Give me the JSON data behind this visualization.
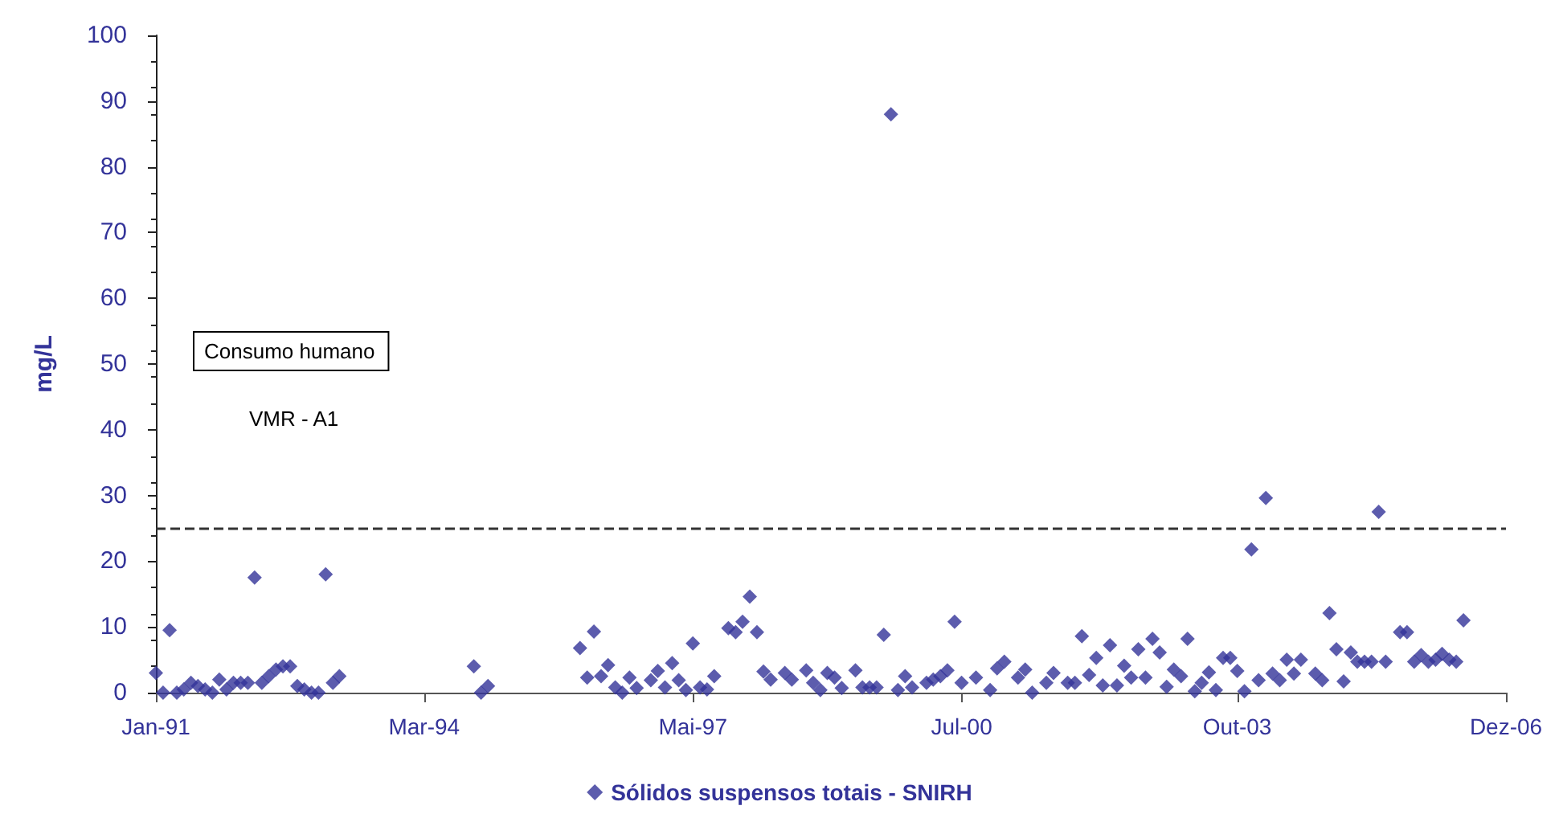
{
  "chart_data": {
    "type": "scatter",
    "ylabel": "mg/L",
    "annotations": [
      "Consumo humano",
      "VMR - A1"
    ],
    "xlim": [
      "1991-01",
      "2006-12"
    ],
    "xticks": [
      {
        "value": "1991-01",
        "label": "Jan-91"
      },
      {
        "value": "1994-03",
        "label": "Mar-94"
      },
      {
        "value": "1997-05",
        "label": "Mai-97"
      },
      {
        "value": "2000-07",
        "label": "Jul-00"
      },
      {
        "value": "2003-10",
        "label": "Out-03"
      },
      {
        "value": "2006-12",
        "label": "Dez-06"
      }
    ],
    "ylim": [
      0,
      100
    ],
    "yticks": [
      0,
      10,
      20,
      30,
      40,
      50,
      60,
      70,
      80,
      90,
      100
    ],
    "grid": false,
    "legend": "bottom",
    "marker": "diamond",
    "ref_lines": [
      {
        "axis": "y",
        "value": 25,
        "label": null,
        "color": "#333333",
        "line_style": "dashed"
      }
    ],
    "series": [
      {
        "name": "Sólidos suspensos totais - SNIRH",
        "color": "#333399",
        "x": [
          "1991-01",
          "1991-02",
          "1991-03",
          "1991-04",
          "1991-05",
          "1991-06",
          "1991-07",
          "1991-08",
          "1991-09",
          "1991-10",
          "1991-11",
          "1991-12",
          "1992-01",
          "1992-02",
          "1992-03",
          "1992-04",
          "1992-05",
          "1992-06",
          "1992-07",
          "1992-08",
          "1992-09",
          "1992-10",
          "1992-11",
          "1992-12",
          "1993-01",
          "1993-02",
          "1993-03",
          "1994-10",
          "1994-11",
          "1994-12",
          "1996-01",
          "1996-02",
          "1996-03",
          "1996-04",
          "1996-05",
          "1996-06",
          "1996-07",
          "1996-08",
          "1996-09",
          "1996-11",
          "1996-12",
          "1997-01",
          "1997-02",
          "1997-03",
          "1997-04",
          "1997-05",
          "1997-06",
          "1997-07",
          "1997-08",
          "1997-10",
          "1997-11",
          "1997-12",
          "1998-01",
          "1998-02",
          "1998-03",
          "1998-04",
          "1998-06",
          "1998-07",
          "1998-09",
          "1998-10",
          "1998-11",
          "1998-12",
          "1999-01",
          "1999-02",
          "1999-04",
          "1999-05",
          "1999-06",
          "1999-07",
          "1999-08",
          "1999-09",
          "1999-10",
          "1999-11",
          "1999-12",
          "2000-02",
          "2000-03",
          "2000-04",
          "2000-05",
          "2000-06",
          "2000-07",
          "2000-09",
          "2000-11",
          "2000-12",
          "2001-01",
          "2001-03",
          "2001-04",
          "2001-05",
          "2001-07",
          "2001-08",
          "2001-10",
          "2001-11",
          "2001-12",
          "2002-01",
          "2002-02",
          "2002-03",
          "2002-04",
          "2002-05",
          "2002-06",
          "2002-07",
          "2002-08",
          "2002-09",
          "2002-10",
          "2002-11",
          "2002-12",
          "2003-01",
          "2003-02",
          "2003-03",
          "2003-04",
          "2003-05",
          "2003-06",
          "2003-07",
          "2003-08",
          "2003-09",
          "2003-10",
          "2003-11",
          "2003-12",
          "2004-01",
          "2004-02",
          "2004-03",
          "2004-04",
          "2004-05",
          "2004-06",
          "2004-07",
          "2004-09",
          "2004-10",
          "2004-11",
          "2004-12",
          "2005-01",
          "2005-02",
          "2005-03",
          "2005-04",
          "2005-05",
          "2005-06",
          "2005-07",
          "2005-09",
          "2005-10",
          "2005-11",
          "2005-12",
          "2006-01",
          "2006-02",
          "2006-03",
          "2006-04",
          "2006-05",
          "2006-06"
        ],
        "values": [
          3,
          0,
          9.5,
          0,
          0.5,
          1.5,
          1,
          0.5,
          0,
          2,
          0.5,
          1.5,
          1.5,
          1.5,
          17.5,
          1.5,
          2.5,
          3.5,
          4,
          4,
          1,
          0.5,
          0,
          0,
          18,
          1.5,
          2.5,
          4,
          0,
          1,
          6.8,
          2.3,
          9.3,
          2.5,
          4.2,
          0.8,
          0,
          2.3,
          0.7,
          1.9,
          3.3,
          0.8,
          4.5,
          1.9,
          0.4,
          7.5,
          0.8,
          0.5,
          2.5,
          9.8,
          9.2,
          10.8,
          14.6,
          9.2,
          3.2,
          2,
          3,
          2,
          3.4,
          1.5,
          0.4,
          3,
          2.3,
          0.7,
          3.4,
          0.8,
          0.8,
          0.8,
          8.8,
          88,
          0.4,
          2.5,
          0.8,
          1.5,
          2,
          2.5,
          3.4,
          10.8,
          1.5,
          2.3,
          0.4,
          3.7,
          4.7,
          2.3,
          3.5,
          0,
          1.5,
          3,
          1.5,
          1.5,
          8.6,
          2.7,
          5.3,
          1.1,
          7.2,
          1.1,
          4.1,
          2.3,
          6.6,
          2.3,
          8.2,
          6.1,
          0.9,
          3.5,
          2.5,
          8.2,
          0.2,
          1.5,
          3.1,
          0.4,
          5.3,
          5.3,
          3.3,
          0.2,
          21.8,
          1.9,
          29.6,
          2.9,
          1.9,
          5,
          2.9,
          5,
          2.9,
          1.9,
          12.1,
          6.6,
          1.7,
          6.1,
          4.7,
          4.7,
          4.7,
          27.5,
          4.7,
          9.2,
          9.2,
          4.7,
          5.7,
          4.7,
          5,
          5.9,
          5,
          4.7,
          11
        ]
      }
    ]
  }
}
